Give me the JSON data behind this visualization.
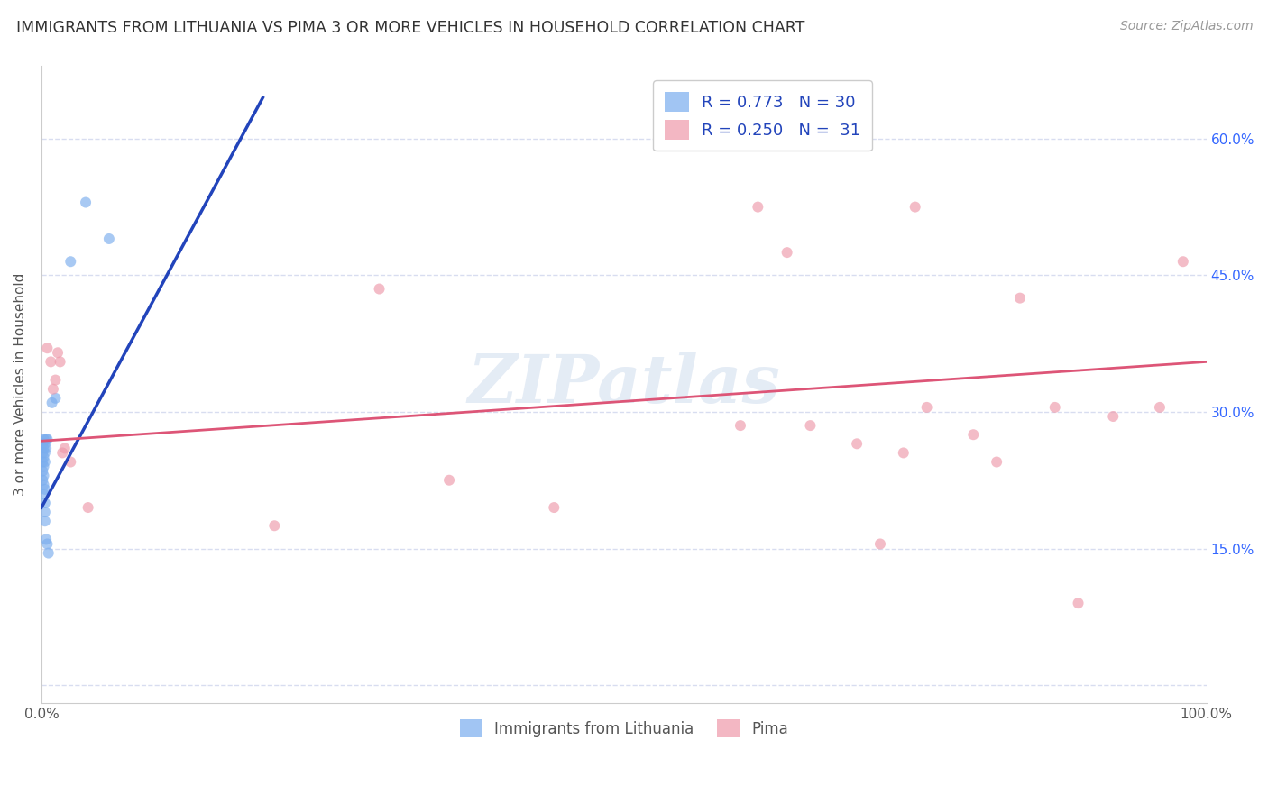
{
  "title": "IMMIGRANTS FROM LITHUANIA VS PIMA 3 OR MORE VEHICLES IN HOUSEHOLD CORRELATION CHART",
  "source": "Source: ZipAtlas.com",
  "ylabel": "3 or more Vehicles in Household",
  "watermark": "ZIPatlas",
  "xlim": [
    0.0,
    1.0
  ],
  "ylim": [
    -0.02,
    0.68
  ],
  "xticks": [
    0.0,
    0.1,
    0.2,
    0.3,
    0.4,
    0.5,
    0.6,
    0.7,
    0.8,
    0.9,
    1.0
  ],
  "xticklabels": [
    "0.0%",
    "",
    "",
    "",
    "",
    "",
    "",
    "",
    "",
    "",
    "100.0%"
  ],
  "yticks": [
    0.0,
    0.15,
    0.3,
    0.45,
    0.6
  ],
  "yticklabels_right": [
    "",
    "15.0%",
    "30.0%",
    "45.0%",
    "60.0%"
  ],
  "blue_scatter_x": [
    0.001,
    0.001,
    0.001,
    0.001,
    0.001,
    0.002,
    0.002,
    0.002,
    0.002,
    0.002,
    0.002,
    0.002,
    0.003,
    0.003,
    0.003,
    0.003,
    0.003,
    0.003,
    0.003,
    0.004,
    0.004,
    0.004,
    0.005,
    0.005,
    0.006,
    0.009,
    0.012,
    0.025,
    0.038,
    0.058
  ],
  "blue_scatter_y": [
    0.265,
    0.255,
    0.245,
    0.235,
    0.225,
    0.27,
    0.26,
    0.25,
    0.24,
    0.23,
    0.22,
    0.21,
    0.265,
    0.255,
    0.245,
    0.215,
    0.2,
    0.19,
    0.18,
    0.27,
    0.26,
    0.16,
    0.27,
    0.155,
    0.145,
    0.31,
    0.315,
    0.465,
    0.53,
    0.49
  ],
  "pink_scatter_x": [
    0.005,
    0.008,
    0.01,
    0.012,
    0.014,
    0.016,
    0.018,
    0.02,
    0.025,
    0.04,
    0.2,
    0.29,
    0.35,
    0.44,
    0.6,
    0.615,
    0.64,
    0.66,
    0.7,
    0.72,
    0.74,
    0.75,
    0.76,
    0.8,
    0.82,
    0.84,
    0.87,
    0.89,
    0.92,
    0.96,
    0.98
  ],
  "pink_scatter_y": [
    0.37,
    0.355,
    0.325,
    0.335,
    0.365,
    0.355,
    0.255,
    0.26,
    0.245,
    0.195,
    0.175,
    0.435,
    0.225,
    0.195,
    0.285,
    0.525,
    0.475,
    0.285,
    0.265,
    0.155,
    0.255,
    0.525,
    0.305,
    0.275,
    0.245,
    0.425,
    0.305,
    0.09,
    0.295,
    0.305,
    0.465
  ],
  "blue_line_x": [
    0.0,
    0.19
  ],
  "blue_line_y": [
    0.195,
    0.645
  ],
  "pink_line_x": [
    0.0,
    1.0
  ],
  "pink_line_y": [
    0.268,
    0.355
  ],
  "blue_color": "#7aadee",
  "pink_color": "#ee99aa",
  "blue_line_color": "#2244bb",
  "pink_line_color": "#dd5577",
  "scatter_size": 75,
  "background_color": "#ffffff",
  "grid_color": "#d8ddf0",
  "title_color": "#333333",
  "right_tick_color": "#3366ff",
  "watermark_color": "#c5d5ea",
  "watermark_alpha": 0.45,
  "legend_top_label1": "R = 0.773   N = 30",
  "legend_top_label2": "R = 0.250   N =  31",
  "legend_bot_label1": "Immigrants from Lithuania",
  "legend_bot_label2": "Pima"
}
